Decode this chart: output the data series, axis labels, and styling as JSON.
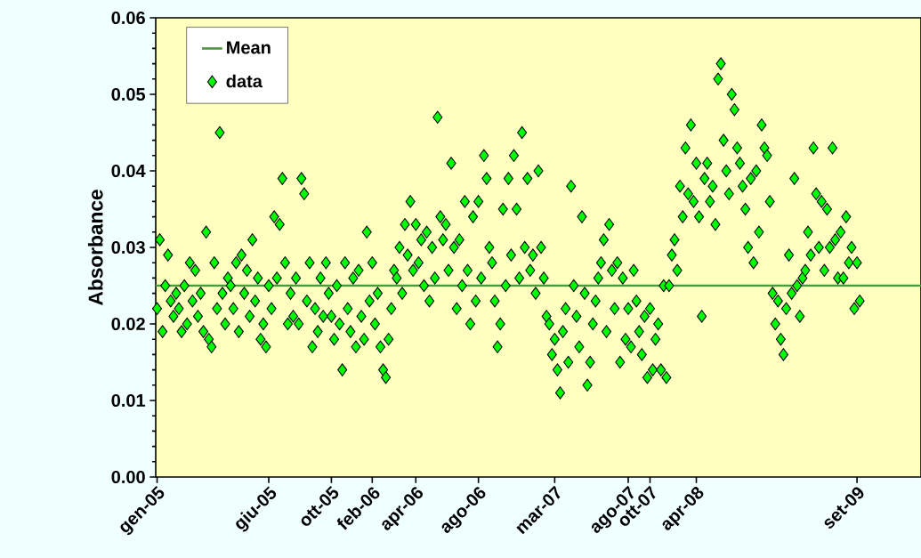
{
  "chart_data": {
    "type": "scatter",
    "ylabel": "Absorbance",
    "marker": "diamond",
    "legend": "top left",
    "grid": false,
    "ylim": [
      0,
      0.06
    ],
    "categories": [
      "gen-05",
      null,
      null,
      null,
      null,
      null,
      null,
      null,
      null,
      null,
      null,
      null,
      null,
      null,
      null,
      null,
      null,
      null,
      null,
      null,
      null,
      null,
      null,
      null,
      null,
      null,
      null,
      null,
      null,
      null,
      null,
      null,
      null,
      null,
      null,
      null,
      null,
      null,
      null,
      null,
      null,
      "giu-05",
      null,
      null,
      null,
      null,
      null,
      null,
      null,
      null,
      null,
      null,
      null,
      null,
      null,
      null,
      null,
      null,
      null,
      null,
      null,
      null,
      null,
      null,
      "ott-05",
      null,
      null,
      null,
      null,
      null,
      null,
      null,
      null,
      null,
      null,
      null,
      null,
      null,
      null,
      "feb-06",
      null,
      null,
      null,
      null,
      null,
      null,
      null,
      null,
      null,
      null,
      null,
      null,
      null,
      null,
      null,
      "apr-06",
      null,
      null,
      null,
      null,
      null,
      null,
      null,
      null,
      null,
      null,
      null,
      null,
      null,
      null,
      null,
      null,
      null,
      null,
      null,
      null,
      null,
      null,
      "ago-06",
      null,
      null,
      null,
      null,
      null,
      null,
      null,
      null,
      null,
      null,
      null,
      null,
      null,
      null,
      null,
      null,
      null,
      null,
      null,
      null,
      null,
      null,
      null,
      null,
      null,
      null,
      null,
      "mar-07",
      null,
      null,
      null,
      null,
      null,
      null,
      null,
      null,
      null,
      null,
      null,
      null,
      null,
      null,
      null,
      null,
      null,
      null,
      null,
      null,
      null,
      null,
      null,
      null,
      null,
      null,
      "ago-07",
      null,
      null,
      null,
      null,
      null,
      null,
      null,
      "ott-07",
      null,
      null,
      null,
      null,
      null,
      null,
      null,
      null,
      null,
      null,
      null,
      null,
      null,
      null,
      null,
      null,
      "apr-08",
      null,
      null,
      null,
      null,
      null,
      null,
      null,
      null,
      null,
      null,
      null,
      null,
      null,
      null,
      null,
      null,
      null,
      null,
      null,
      null,
      null,
      null,
      null,
      null,
      null,
      null,
      null,
      null,
      null,
      null,
      null,
      null,
      null,
      null,
      null,
      null,
      null,
      null,
      null,
      null,
      null,
      null,
      null,
      null,
      null,
      null,
      null,
      null,
      null,
      null,
      null,
      null,
      null,
      null,
      null,
      null,
      null,
      null,
      "set-09",
      null,
      null,
      null,
      null,
      null,
      null,
      null,
      null,
      null,
      null,
      null,
      null,
      null,
      null,
      null,
      null,
      null,
      null,
      null,
      null,
      null,
      null,
      null
    ],
    "yticks": [
      {
        "value": 0,
        "label": "0.00"
      },
      {
        "value": 0.01,
        "label": "0.01"
      },
      {
        "value": 0.02,
        "label": "0.02"
      },
      {
        "value": 0.03,
        "label": "0.03"
      },
      {
        "value": 0.04,
        "label": "0.04"
      },
      {
        "value": 0.05,
        "label": "0.05"
      },
      {
        "value": 0.06,
        "label": "0.06"
      }
    ],
    "ref_lines": [
      {
        "axis": "y",
        "value": 0.025,
        "label": "Mean",
        "color": "#4c9a3c",
        "line_style": "solid"
      }
    ],
    "series": [
      {
        "name": "data",
        "color": "#00ff00",
        "values": [
          0.022,
          0.031,
          0.019,
          0.025,
          0.029,
          0.023,
          0.021,
          0.024,
          0.022,
          0.019,
          0.025,
          0.02,
          0.028,
          0.023,
          0.027,
          0.021,
          0.024,
          0.019,
          0.032,
          0.018,
          0.017,
          0.028,
          0.022,
          0.045,
          0.024,
          0.02,
          0.026,
          0.025,
          0.022,
          0.028,
          0.019,
          0.029,
          0.024,
          0.027,
          0.021,
          0.031,
          0.023,
          0.026,
          0.018,
          0.02,
          0.017,
          0.025,
          0.022,
          0.034,
          0.026,
          0.033,
          0.039,
          0.028,
          0.02,
          0.024,
          0.021,
          0.026,
          0.02,
          0.039,
          0.037,
          0.023,
          0.028,
          0.017,
          0.022,
          0.019,
          0.026,
          0.021,
          0.028,
          0.024,
          0.021,
          0.018,
          0.025,
          0.02,
          0.014,
          0.028,
          0.022,
          0.019,
          0.026,
          0.017,
          0.027,
          0.021,
          0.018,
          0.032,
          0.023,
          0.028,
          0.02,
          0.024,
          0.017,
          0.014,
          0.013,
          0.018,
          0.022,
          0.027,
          0.026,
          0.03,
          0.024,
          0.033,
          0.029,
          0.036,
          0.027,
          0.033,
          0.028,
          0.031,
          0.025,
          0.032,
          0.023,
          0.03,
          0.026,
          0.047,
          0.034,
          0.031,
          0.033,
          0.027,
          0.041,
          0.03,
          0.022,
          0.031,
          0.025,
          0.036,
          0.027,
          0.02,
          0.034,
          0.023,
          0.036,
          0.026,
          0.042,
          0.039,
          0.03,
          0.028,
          0.023,
          0.017,
          0.02,
          0.035,
          0.025,
          0.039,
          0.029,
          0.042,
          0.035,
          0.026,
          0.045,
          0.03,
          0.039,
          0.027,
          0.029,
          0.024,
          0.04,
          0.03,
          0.026,
          0.021,
          0.02,
          0.016,
          0.018,
          0.014,
          0.011,
          0.019,
          0.022,
          0.015,
          0.038,
          0.025,
          0.021,
          0.017,
          0.034,
          0.024,
          0.012,
          0.015,
          0.02,
          0.023,
          0.026,
          0.028,
          0.031,
          0.019,
          0.033,
          0.027,
          0.022,
          0.028,
          0.015,
          0.026,
          0.018,
          0.022,
          0.017,
          0.027,
          0.023,
          0.019,
          0.016,
          0.021,
          0.013,
          0.022,
          0.014,
          0.018,
          0.02,
          0.014,
          0.025,
          0.013,
          0.025,
          0.029,
          0.031,
          0.027,
          0.038,
          0.034,
          0.043,
          0.037,
          0.046,
          0.036,
          0.041,
          0.034,
          0.021,
          0.039,
          0.041,
          0.036,
          0.038,
          0.033,
          0.052,
          0.054,
          0.044,
          0.04,
          0.037,
          0.05,
          0.048,
          0.043,
          0.041,
          0.038,
          0.035,
          0.03,
          0.039,
          0.028,
          0.04,
          0.032,
          0.046,
          0.043,
          0.042,
          0.036,
          0.024,
          0.02,
          0.023,
          0.018,
          0.016,
          0.022,
          0.029,
          0.024,
          0.039,
          0.025,
          0.021,
          0.026,
          0.027,
          0.032,
          0.029,
          0.043,
          0.037,
          0.03,
          0.036,
          0.027,
          0.035,
          0.03,
          0.043,
          0.031,
          0.026,
          0.032,
          0.026,
          0.034,
          0.028,
          0.03,
          0.022,
          0.028,
          0.023,
          null,
          null,
          null,
          null,
          null,
          null,
          null,
          null,
          null,
          null,
          null,
          null,
          null,
          null,
          null,
          null,
          null,
          null,
          null,
          null,
          null,
          null
        ]
      }
    ]
  }
}
